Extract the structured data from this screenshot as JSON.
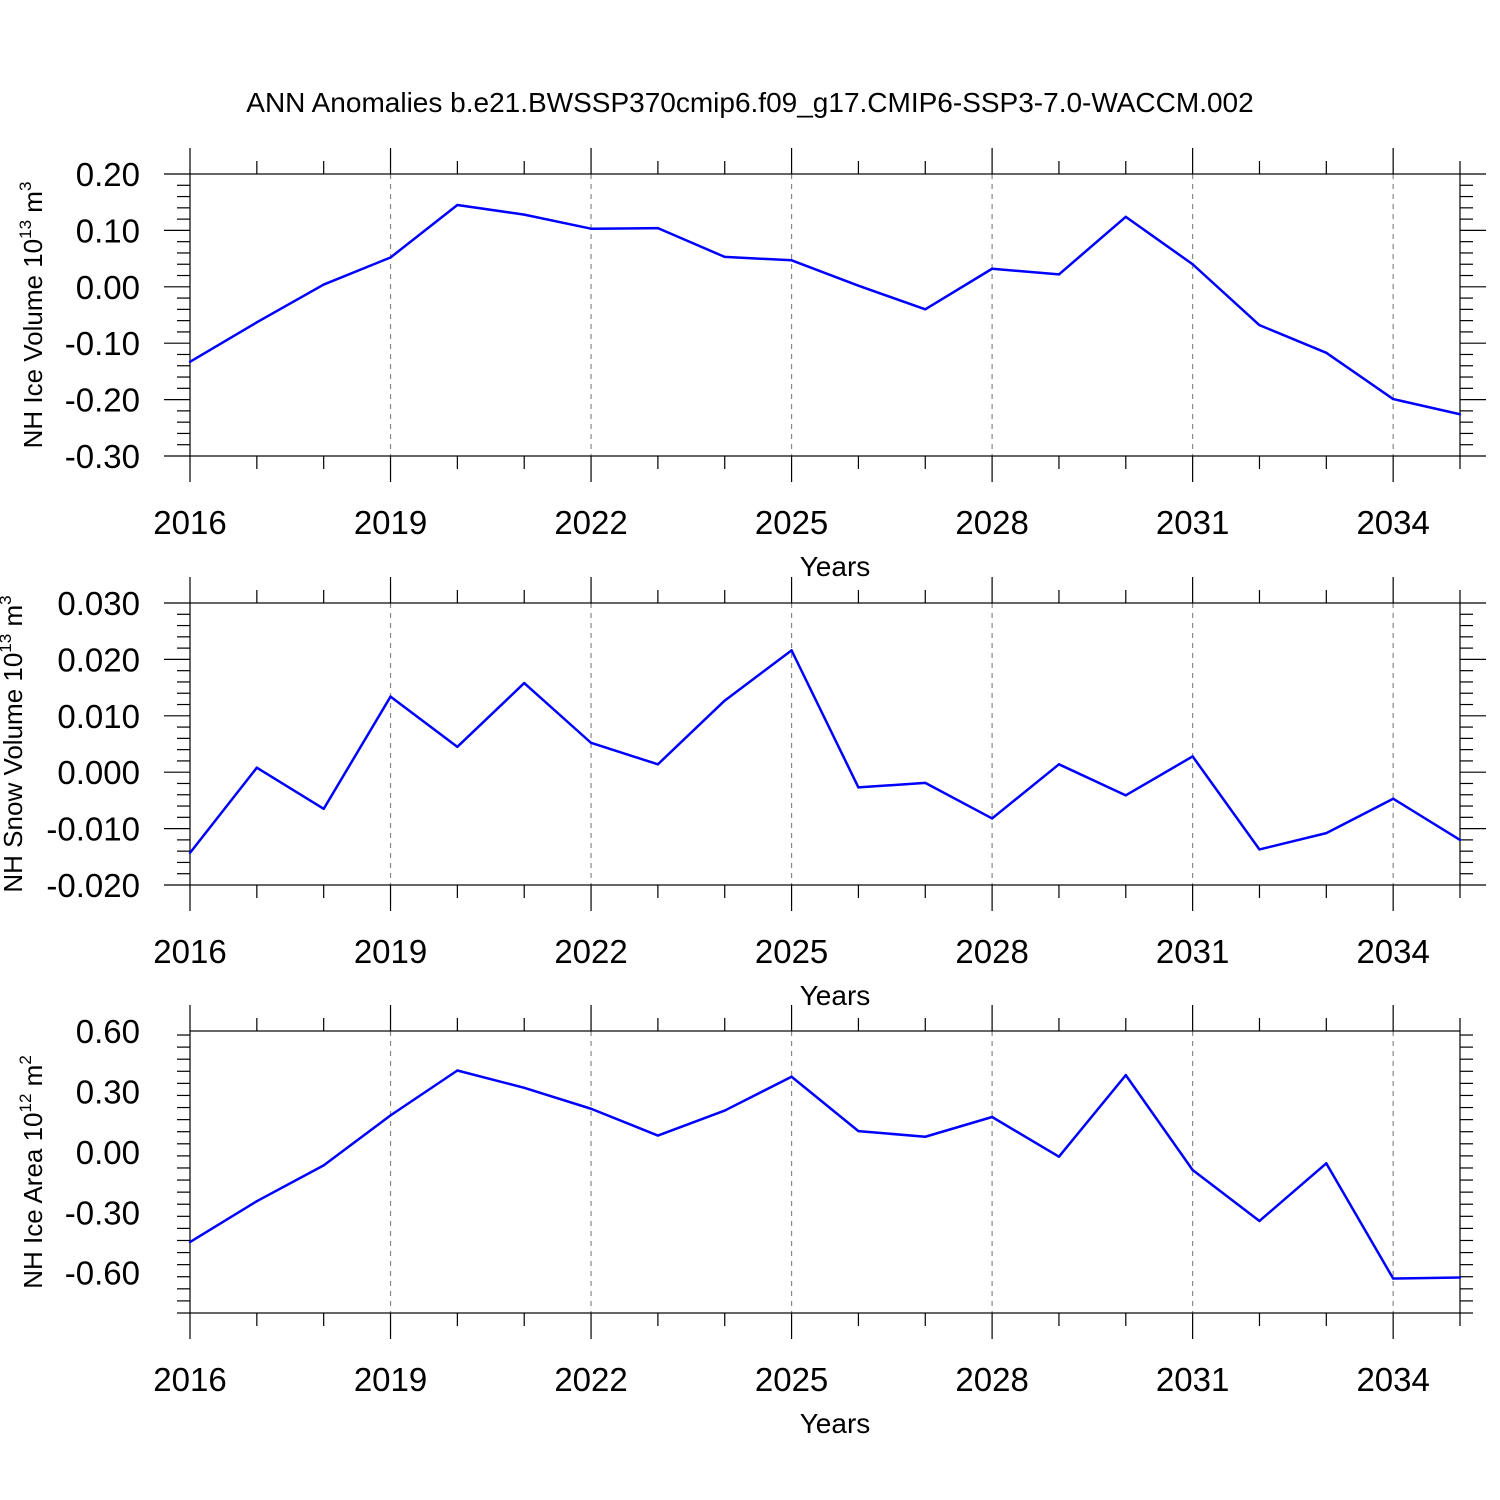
{
  "figure": {
    "title": "ANN Anomalies b.e21.BWSSP370cmip6.f09_g17.CMIP6-SSP3-7.0-WACCM.002",
    "line_color": "#0000ff",
    "grid_color": "#888888",
    "grid_style": "dashed vertical lines at labeled x ticks"
  },
  "chart_data": [
    {
      "type": "line",
      "ylabel": {
        "main": "NH Ice Volume 10",
        "sup": "13",
        "mid": " m",
        "sup2": "3"
      },
      "xlabel": "Years",
      "xlim": [
        2016,
        2035
      ],
      "ylim": [
        -0.3,
        0.2
      ],
      "x_ticks": [
        2016,
        2019,
        2022,
        2025,
        2028,
        2031,
        2034
      ],
      "x_tick_labels": [
        "2016",
        "2019",
        "2022",
        "2025",
        "2028",
        "2031",
        "2034"
      ],
      "y_ticks": [
        0.2,
        0.1,
        0.0,
        -0.1,
        -0.2,
        -0.3
      ],
      "y_tick_labels": [
        "0.20",
        "0.10",
        "0.00",
        "-0.10",
        "-0.20",
        "-0.30"
      ],
      "x": [
        2016,
        2017,
        2018,
        2019,
        2020,
        2021,
        2022,
        2023,
        2024,
        2025,
        2026,
        2027,
        2028,
        2029,
        2030,
        2031,
        2032,
        2033,
        2034,
        2035
      ],
      "values": [
        -0.133,
        -0.063,
        0.004,
        0.052,
        0.145,
        0.128,
        0.103,
        0.104,
        0.053,
        0.047,
        0.002,
        -0.04,
        0.032,
        0.022,
        0.124,
        0.04,
        -0.068,
        -0.117,
        -0.199,
        -0.226
      ]
    },
    {
      "type": "line",
      "ylabel": {
        "main": "NH Snow Volume 10",
        "sup": "13",
        "mid": " m",
        "sup2": "3"
      },
      "xlabel": "Years",
      "xlim": [
        2016,
        2035
      ],
      "ylim": [
        -0.02,
        0.03
      ],
      "x_ticks": [
        2016,
        2019,
        2022,
        2025,
        2028,
        2031,
        2034
      ],
      "x_tick_labels": [
        "2016",
        "2019",
        "2022",
        "2025",
        "2028",
        "2031",
        "2034"
      ],
      "y_ticks": [
        0.03,
        0.02,
        0.01,
        0.0,
        -0.01,
        -0.02
      ],
      "y_tick_labels": [
        "0.030",
        "0.020",
        "0.010",
        "0.000",
        "-0.010",
        "-0.020"
      ],
      "x": [
        2016,
        2017,
        2018,
        2019,
        2020,
        2021,
        2022,
        2023,
        2024,
        2025,
        2026,
        2027,
        2028,
        2029,
        2030,
        2031,
        2032,
        2033,
        2034,
        2035
      ],
      "values": [
        -0.0143,
        0.0008,
        -0.0065,
        0.0134,
        0.0045,
        0.0158,
        0.0052,
        0.0014,
        0.0127,
        0.0216,
        -0.0027,
        -0.0019,
        -0.0082,
        0.0014,
        -0.0041,
        0.0028,
        -0.0137,
        -0.0108,
        -0.0047,
        -0.012
      ]
    },
    {
      "type": "line",
      "ylabel": {
        "main": "NH Ice Area 10",
        "sup": "12",
        "mid": " m",
        "sup2": "2"
      },
      "xlabel": "Years",
      "xlim": [
        2016,
        2035
      ],
      "ylim": [
        -0.8,
        0.6
      ],
      "x_ticks": [
        2016,
        2019,
        2022,
        2025,
        2028,
        2031,
        2034
      ],
      "x_tick_labels": [
        "2016",
        "2019",
        "2022",
        "2025",
        "2028",
        "2031",
        "2034"
      ],
      "y_ticks": [
        0.6,
        0.3,
        0.0,
        -0.3,
        -0.6
      ],
      "y_tick_labels": [
        "0.60",
        "0.30",
        "0.00",
        "-0.30",
        "-0.60"
      ],
      "x": [
        2016,
        2017,
        2018,
        2019,
        2020,
        2021,
        2022,
        2023,
        2024,
        2025,
        2026,
        2027,
        2028,
        2029,
        2030,
        2031,
        2032,
        2033,
        2034,
        2035
      ],
      "values": [
        -0.448,
        -0.245,
        -0.067,
        0.181,
        0.404,
        0.318,
        0.214,
        0.081,
        0.205,
        0.373,
        0.103,
        0.075,
        0.173,
        -0.024,
        0.381,
        -0.09,
        -0.343,
        -0.057,
        -0.629,
        -0.624
      ]
    }
  ]
}
